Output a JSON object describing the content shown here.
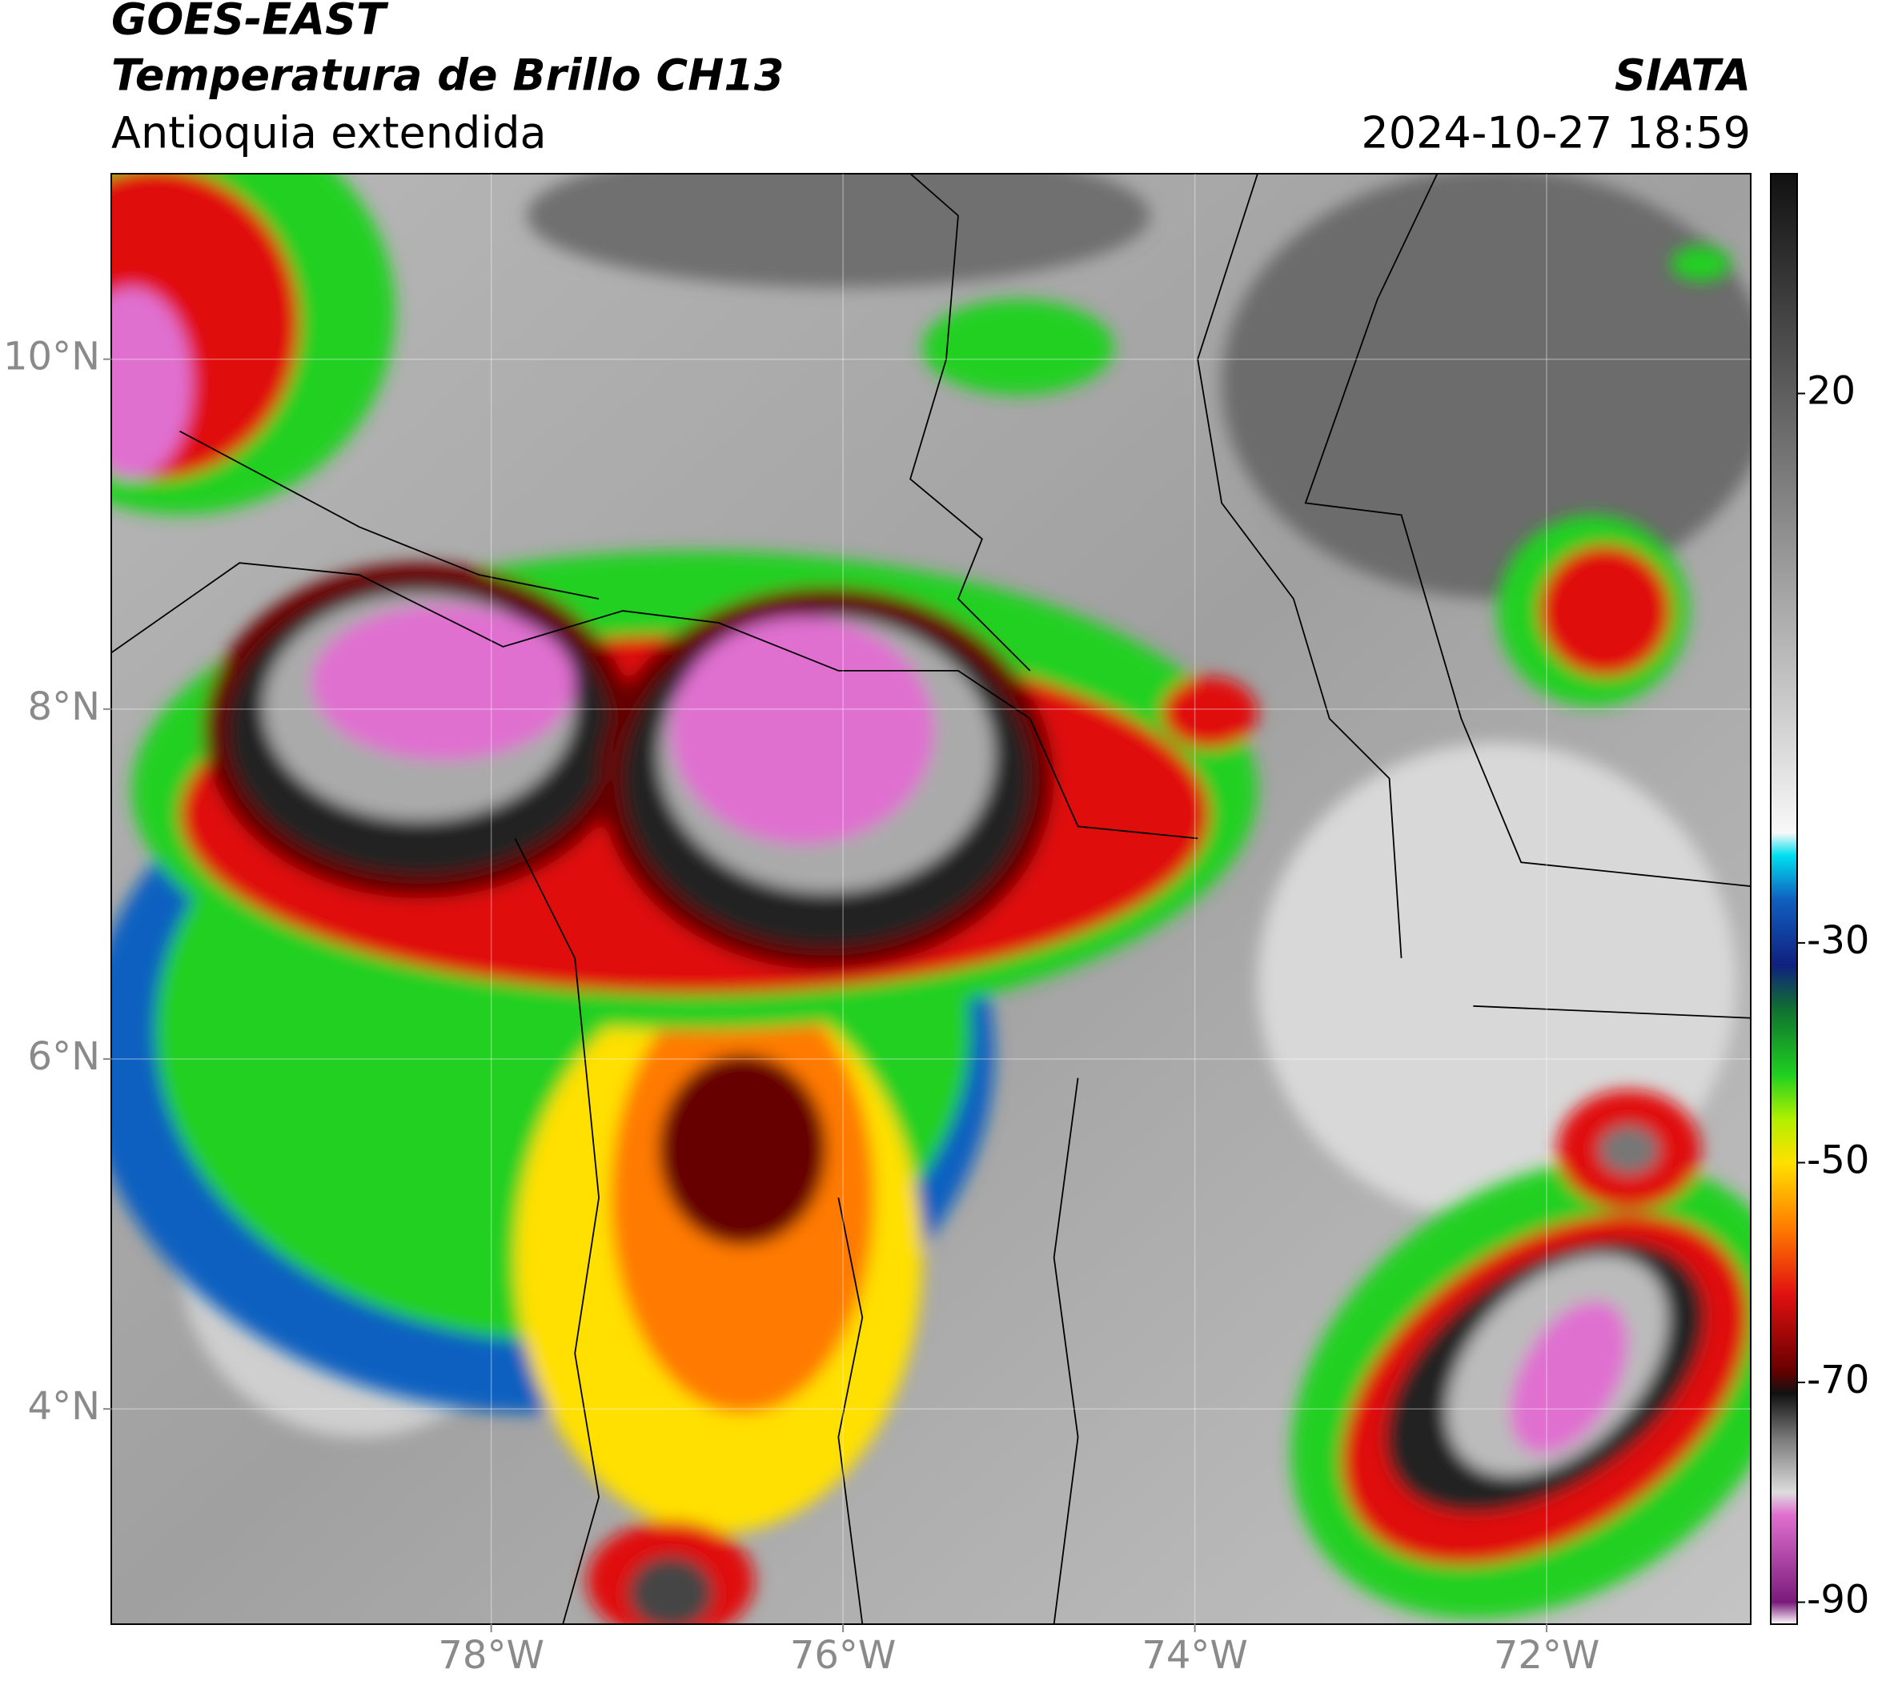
{
  "header": {
    "satellite": "GOES-EAST",
    "product": "Temperatura de Brillo CH13",
    "region": "Antioquia extendida",
    "agency": "SIATA",
    "datetime": "2024-10-27 18:59"
  },
  "map": {
    "xlim": [
      -80.16,
      -70.84
    ],
    "ylim": [
      2.77,
      11.06
    ],
    "xticks": [
      {
        "value": -78,
        "label": "78°W"
      },
      {
        "value": -76,
        "label": "76°W"
      },
      {
        "value": -74,
        "label": "74°W"
      },
      {
        "value": -72,
        "label": "72°W"
      }
    ],
    "yticks": [
      {
        "value": 4,
        "label": "4°N"
      },
      {
        "value": 6,
        "label": "6°N"
      },
      {
        "value": 8,
        "label": "8°N"
      },
      {
        "value": 10,
        "label": "10°N"
      }
    ],
    "grid": true
  },
  "colorbar": {
    "lim": [
      -92,
      40
    ],
    "ticks": [
      -90,
      -70,
      -50,
      -30,
      20
    ],
    "colormap": [
      {
        "value": -92,
        "color": "#ffffff"
      },
      {
        "value": -90,
        "color": "#7a1a7a"
      },
      {
        "value": -82,
        "color": "#e070d0"
      },
      {
        "value": -80,
        "color": "#dddddd"
      },
      {
        "value": -75,
        "color": "#777777"
      },
      {
        "value": -71,
        "color": "#111111"
      },
      {
        "value": -69,
        "color": "#660000"
      },
      {
        "value": -62,
        "color": "#e01010"
      },
      {
        "value": -56,
        "color": "#ff7a00"
      },
      {
        "value": -50,
        "color": "#ffe000"
      },
      {
        "value": -46,
        "color": "#b0f000"
      },
      {
        "value": -42,
        "color": "#20d020"
      },
      {
        "value": -36,
        "color": "#107030"
      },
      {
        "value": -32,
        "color": "#102080"
      },
      {
        "value": -26,
        "color": "#1060c0"
      },
      {
        "value": -22,
        "color": "#00e0f0"
      },
      {
        "value": -20,
        "color": "#f8f8f8"
      },
      {
        "value": 40,
        "color": "#111111"
      }
    ]
  }
}
